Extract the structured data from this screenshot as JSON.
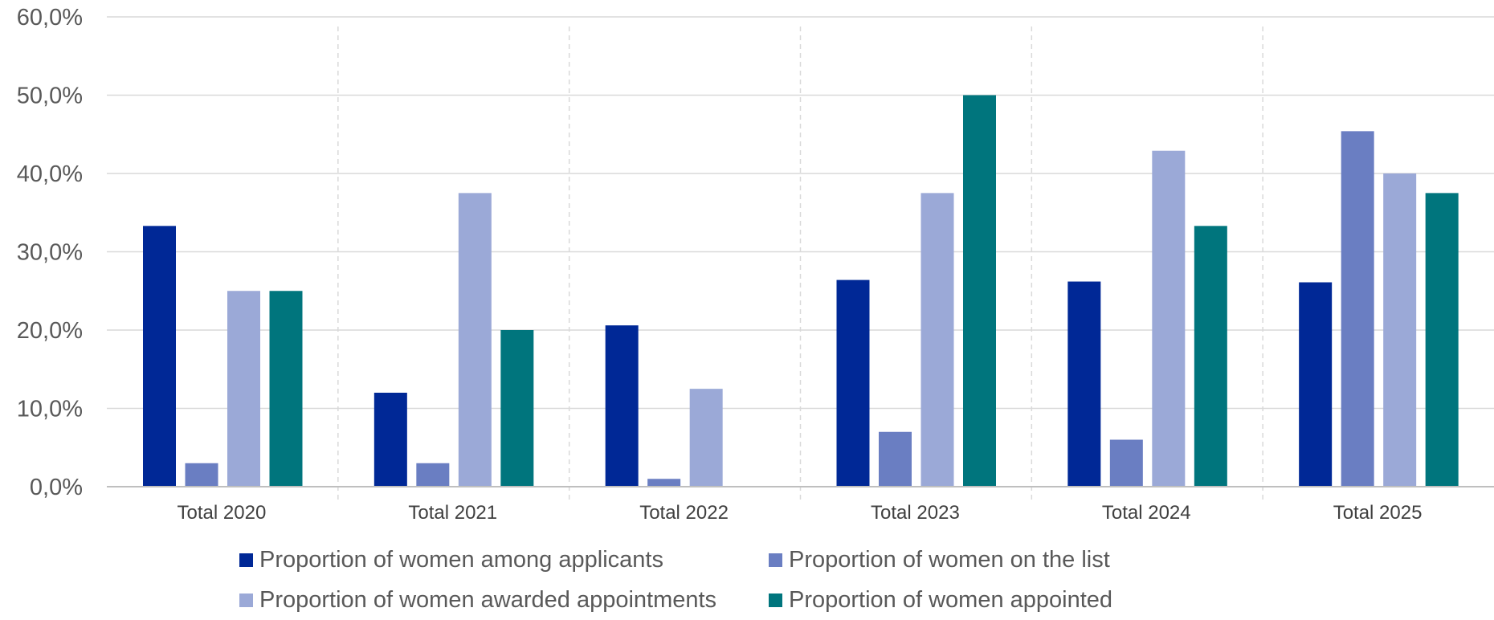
{
  "chart_data": {
    "type": "bar",
    "categories": [
      "Total 2020",
      "Total 2021",
      "Total 2022",
      "Total 2023",
      "Total 2024",
      "Total 2025"
    ],
    "series": [
      {
        "name": "Proportion of women among applicants",
        "color": "#002896",
        "values": [
          33.3,
          12.0,
          20.6,
          26.4,
          26.2,
          26.1
        ]
      },
      {
        "name": "Proportion of women on the list",
        "color": "#6A7EC2",
        "values": [
          3.0,
          3.0,
          1.0,
          7.0,
          6.0,
          45.4
        ]
      },
      {
        "name": "Proportion of women awarded appointments",
        "color": "#9BA9D7",
        "values": [
          25.0,
          37.5,
          12.5,
          37.5,
          42.9,
          40.0
        ]
      },
      {
        "name": "Proportion of women appointed",
        "color": "#00757D",
        "values": [
          25.0,
          20.0,
          0.0,
          50.0,
          33.3,
          37.5
        ]
      }
    ],
    "ylim": [
      0,
      60
    ],
    "yticks": [
      "0,0%",
      "10,0%",
      "20,0%",
      "30,0%",
      "40,0%",
      "50,0%",
      "60,0%"
    ],
    "ytick_values": [
      0,
      10,
      20,
      30,
      40,
      50,
      60
    ],
    "grid": true,
    "legend_position": "bottom",
    "title": "",
    "xlabel": "",
    "ylabel": ""
  }
}
